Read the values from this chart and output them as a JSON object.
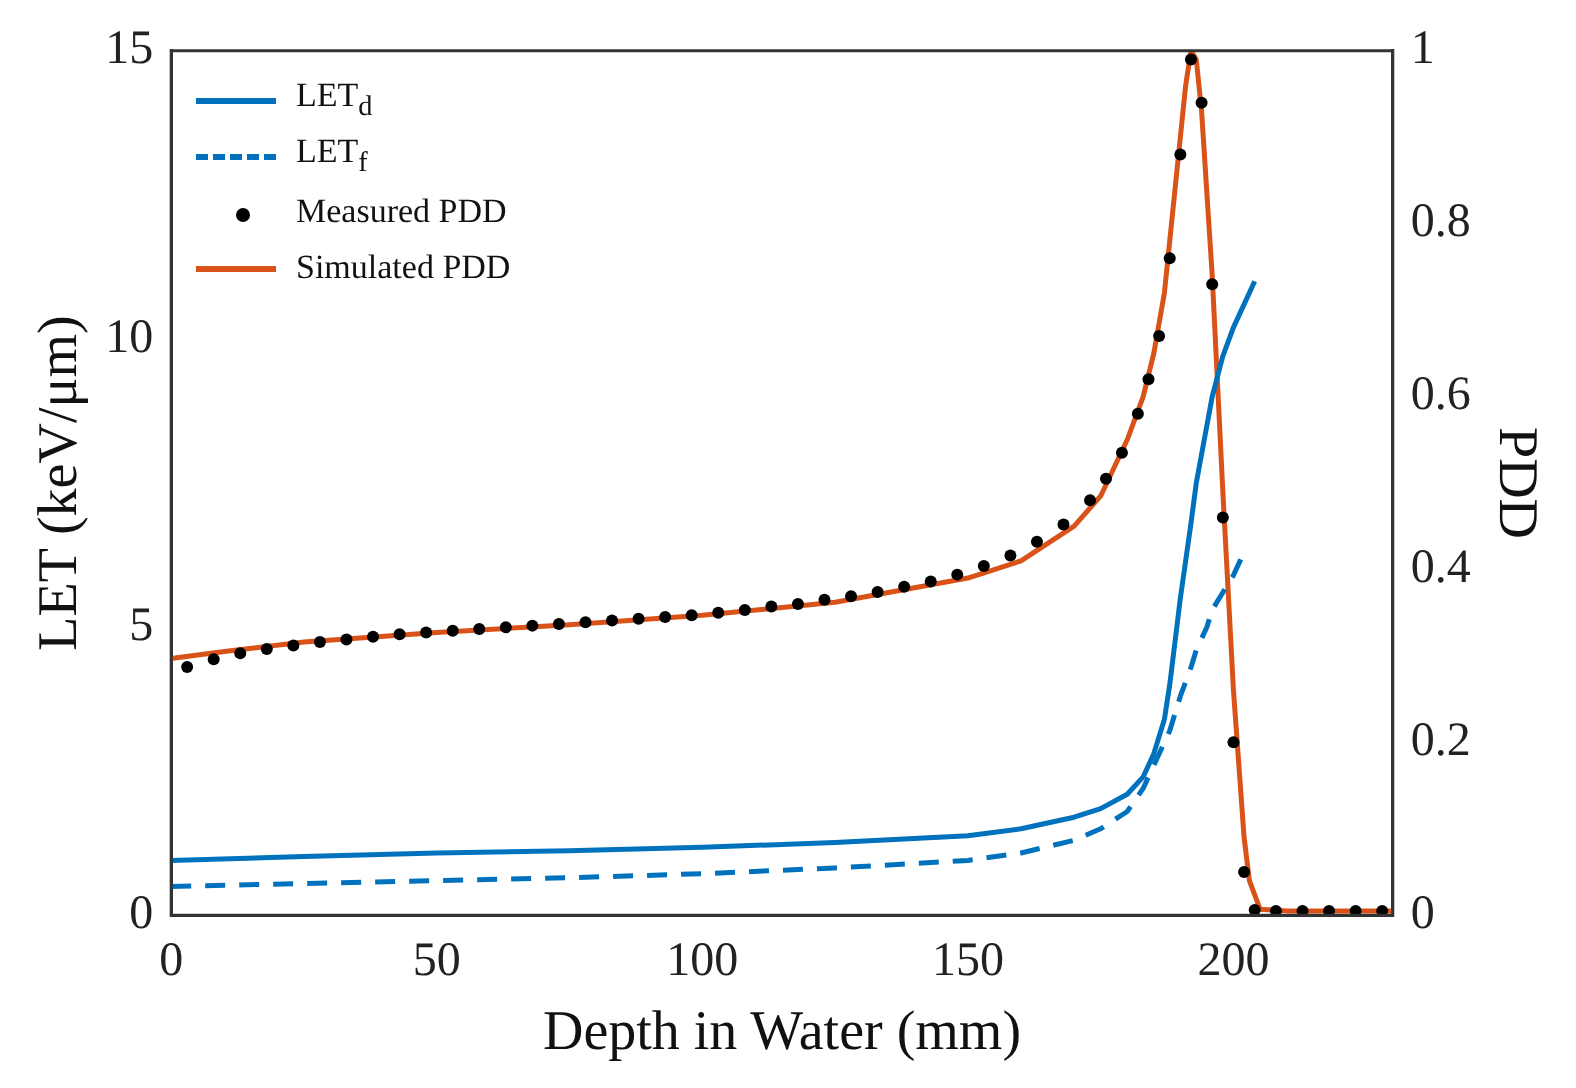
{
  "chart_data": {
    "type": "line",
    "xlabel": "Depth in Water (mm)",
    "ylabel": "LET (keV/μm)",
    "y2label": "PDD",
    "xlim": [
      0,
      230
    ],
    "xticks": [
      0,
      50,
      100,
      150,
      200
    ],
    "ylim": [
      0,
      15
    ],
    "yticks": [
      0,
      5,
      10,
      15
    ],
    "y2lim": [
      0,
      1
    ],
    "y2ticks": [
      0,
      0.2,
      0.4,
      0.6,
      0.8,
      1
    ],
    "grid": false,
    "legend": "top left",
    "series": [
      {
        "name": "LET$_{d}$",
        "color": "#0072bd",
        "line_style": "solid",
        "marker": "none",
        "axis": "y",
        "x": [
          0,
          25,
          50,
          75,
          100,
          125,
          150,
          160,
          170,
          175,
          180,
          183,
          185,
          187,
          188,
          190,
          192,
          193,
          195,
          196,
          198,
          200,
          202,
          204
        ],
        "values": [
          0.95,
          1.02,
          1.08,
          1.12,
          1.18,
          1.26,
          1.38,
          1.5,
          1.7,
          1.85,
          2.1,
          2.4,
          2.8,
          3.4,
          4,
          5.5,
          6.8,
          7.5,
          8.5,
          9,
          9.7,
          10.2,
          10.6,
          11
        ]
      },
      {
        "name": "LET$_{f}$",
        "color": "#0072bd",
        "line_style": "dashed",
        "marker": "none",
        "axis": "y",
        "x": [
          0,
          25,
          50,
          75,
          100,
          125,
          150,
          160,
          170,
          175,
          180,
          183,
          185,
          187,
          188,
          190,
          192,
          193,
          195,
          196,
          198,
          200,
          202
        ],
        "values": [
          0.5,
          0.55,
          0.6,
          0.65,
          0.72,
          0.82,
          0.95,
          1.08,
          1.3,
          1.5,
          1.8,
          2.2,
          2.6,
          3,
          3.2,
          3.8,
          4.3,
          4.6,
          5,
          5.3,
          5.6,
          5.9,
          6.3
        ]
      },
      {
        "name": "Measured PDD",
        "type": "scatter",
        "color": "#000000",
        "marker": "circle",
        "axis": "y2",
        "x": [
          3,
          8,
          13,
          18,
          23,
          28,
          33,
          38,
          43,
          48,
          53,
          58,
          63,
          68,
          73,
          78,
          83,
          88,
          93,
          98,
          103,
          108,
          113,
          118,
          123,
          128,
          133,
          138,
          143,
          148,
          153,
          158,
          163,
          168,
          173,
          176,
          179,
          182,
          184,
          186,
          188,
          190,
          192,
          194,
          196,
          198,
          200,
          202,
          204,
          208,
          213,
          218,
          223,
          228
        ],
        "values": [
          0.287,
          0.296,
          0.303,
          0.308,
          0.312,
          0.316,
          0.319,
          0.322,
          0.325,
          0.327,
          0.329,
          0.331,
          0.333,
          0.335,
          0.337,
          0.339,
          0.341,
          0.343,
          0.345,
          0.347,
          0.35,
          0.353,
          0.357,
          0.36,
          0.365,
          0.369,
          0.374,
          0.38,
          0.386,
          0.394,
          0.404,
          0.416,
          0.432,
          0.452,
          0.48,
          0.505,
          0.535,
          0.58,
          0.62,
          0.67,
          0.76,
          0.88,
          0.99,
          0.94,
          0.73,
          0.46,
          0.2,
          0.05,
          0.006,
          0.005,
          0.005,
          0.005,
          0.005,
          0.005
        ]
      },
      {
        "name": "Simulated PDD",
        "color": "#d95319",
        "line_style": "solid",
        "marker": "none",
        "axis": "y2",
        "x": [
          0,
          10,
          25,
          50,
          75,
          100,
          125,
          150,
          160,
          170,
          175,
          180,
          183,
          185,
          187,
          188,
          190,
          191,
          192,
          193,
          194,
          196,
          198,
          200,
          202,
          203,
          205,
          210,
          230
        ],
        "values": [
          0.297,
          0.305,
          0.316,
          0.327,
          0.336,
          0.347,
          0.362,
          0.39,
          0.41,
          0.45,
          0.485,
          0.55,
          0.6,
          0.65,
          0.72,
          0.78,
          0.9,
          0.96,
          1,
          0.99,
          0.93,
          0.74,
          0.49,
          0.26,
          0.09,
          0.04,
          0.007,
          0.005,
          0.005
        ]
      }
    ]
  }
}
